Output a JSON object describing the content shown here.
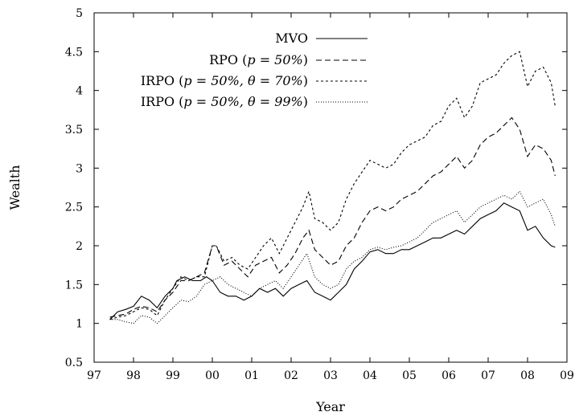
{
  "chart_data": {
    "type": "line",
    "xlabel": "Year",
    "ylabel": "Wealth",
    "xlim": [
      1997,
      2009
    ],
    "ylim": [
      0.5,
      5
    ],
    "xticks": [
      {
        "value": 1997,
        "label": "97"
      },
      {
        "value": 1998,
        "label": "98"
      },
      {
        "value": 1999,
        "label": "99"
      },
      {
        "value": 2000,
        "label": "00"
      },
      {
        "value": 2001,
        "label": "01"
      },
      {
        "value": 2002,
        "label": "02"
      },
      {
        "value": 2003,
        "label": "03"
      },
      {
        "value": 2004,
        "label": "04"
      },
      {
        "value": 2005,
        "label": "05"
      },
      {
        "value": 2006,
        "label": "06"
      },
      {
        "value": 2007,
        "label": "07"
      },
      {
        "value": 2008,
        "label": "08"
      },
      {
        "value": 2009,
        "label": "09"
      }
    ],
    "yticks": [
      {
        "value": 0.5,
        "label": "0.5"
      },
      {
        "value": 1,
        "label": "1"
      },
      {
        "value": 1.5,
        "label": "1.5"
      },
      {
        "value": 2,
        "label": "2"
      },
      {
        "value": 2.5,
        "label": "2.5"
      },
      {
        "value": 3,
        "label": "3"
      },
      {
        "value": 3.5,
        "label": "3.5"
      },
      {
        "value": 4,
        "label": "4"
      },
      {
        "value": 4.5,
        "label": "4.5"
      },
      {
        "value": 5,
        "label": "5"
      }
    ],
    "grid": false,
    "legend_position": "top-left",
    "series": [
      {
        "name": "MVO",
        "legend": {
          "label": "MVO",
          "math": "",
          "suffix": ""
        },
        "dash": "solid",
        "color": "#000000",
        "x": [
          1997.4,
          1997.6,
          1997.8,
          1998.0,
          1998.2,
          1998.4,
          1998.6,
          1998.8,
          1999.0,
          1999.1,
          1999.3,
          1999.5,
          1999.7,
          1999.85,
          2000.0,
          2000.2,
          2000.4,
          2000.6,
          2000.8,
          2001.0,
          2001.2,
          2001.4,
          2001.6,
          2001.8,
          2002.0,
          2002.2,
          2002.4,
          2002.6,
          2002.8,
          2003.0,
          2003.2,
          2003.4,
          2003.6,
          2003.8,
          2004.0,
          2004.2,
          2004.4,
          2004.6,
          2004.8,
          2005.0,
          2005.2,
          2005.4,
          2005.6,
          2005.8,
          2006.0,
          2006.2,
          2006.4,
          2006.6,
          2006.8,
          2007.0,
          2007.2,
          2007.4,
          2007.6,
          2007.8,
          2008.0,
          2008.2,
          2008.4,
          2008.6,
          2008.7
        ],
        "y": [
          1.05,
          1.15,
          1.18,
          1.22,
          1.35,
          1.3,
          1.2,
          1.35,
          1.45,
          1.55,
          1.6,
          1.55,
          1.55,
          1.6,
          1.55,
          1.4,
          1.35,
          1.35,
          1.3,
          1.35,
          1.45,
          1.4,
          1.45,
          1.35,
          1.45,
          1.5,
          1.55,
          1.4,
          1.35,
          1.3,
          1.4,
          1.5,
          1.7,
          1.8,
          1.92,
          1.95,
          1.9,
          1.9,
          1.95,
          1.95,
          2.0,
          2.05,
          2.1,
          2.1,
          2.15,
          2.2,
          2.15,
          2.25,
          2.35,
          2.4,
          2.45,
          2.55,
          2.5,
          2.45,
          2.2,
          2.25,
          2.1,
          2.0,
          1.98
        ]
      },
      {
        "name": "RPO (p = 50%)",
        "legend": {
          "label": "RPO (",
          "math": "p = 50%",
          "suffix": ")"
        },
        "dash": "7,4",
        "color": "#000000",
        "x": [
          1997.4,
          1997.6,
          1997.8,
          1998.0,
          1998.2,
          1998.4,
          1998.6,
          1998.8,
          1999.0,
          1999.2,
          1999.4,
          1999.6,
          1999.8,
          2000.0,
          2000.1,
          2000.3,
          2000.5,
          2000.7,
          2000.9,
          2001.1,
          2001.3,
          2001.5,
          2001.7,
          2001.9,
          2002.1,
          2002.3,
          2002.45,
          2002.6,
          2002.8,
          2003.0,
          2003.2,
          2003.4,
          2003.6,
          2003.8,
          2004.0,
          2004.2,
          2004.4,
          2004.6,
          2004.8,
          2005.0,
          2005.2,
          2005.4,
          2005.6,
          2005.8,
          2006.0,
          2006.2,
          2006.4,
          2006.6,
          2006.8,
          2007.0,
          2007.2,
          2007.4,
          2007.6,
          2007.8,
          2008.0,
          2008.2,
          2008.4,
          2008.6,
          2008.7
        ],
        "y": [
          1.08,
          1.1,
          1.12,
          1.18,
          1.22,
          1.2,
          1.15,
          1.3,
          1.4,
          1.55,
          1.55,
          1.6,
          1.65,
          2.0,
          2.0,
          1.75,
          1.8,
          1.7,
          1.6,
          1.75,
          1.8,
          1.85,
          1.65,
          1.75,
          1.9,
          2.1,
          2.2,
          1.95,
          1.85,
          1.75,
          1.8,
          2.0,
          2.1,
          2.3,
          2.45,
          2.5,
          2.45,
          2.5,
          2.6,
          2.65,
          2.7,
          2.8,
          2.9,
          2.95,
          3.05,
          3.15,
          3.0,
          3.1,
          3.3,
          3.4,
          3.45,
          3.55,
          3.65,
          3.5,
          3.15,
          3.3,
          3.25,
          3.1,
          2.9
        ]
      },
      {
        "name": "IRPO (p = 50%, θ = 70%)",
        "legend": {
          "label": "IRPO (",
          "math": "p = 50%, θ = 70%",
          "suffix": ")"
        },
        "dash": "3,3",
        "color": "#000000",
        "x": [
          1997.4,
          1997.6,
          1997.8,
          1998.0,
          1998.2,
          1998.4,
          1998.6,
          1998.8,
          1999.0,
          1999.2,
          1999.4,
          1999.6,
          1999.8,
          2000.0,
          2000.1,
          2000.3,
          2000.5,
          2000.7,
          2000.9,
          2001.1,
          2001.3,
          2001.5,
          2001.7,
          2001.9,
          2002.1,
          2002.3,
          2002.45,
          2002.6,
          2002.8,
          2003.0,
          2003.2,
          2003.4,
          2003.6,
          2003.8,
          2004.0,
          2004.2,
          2004.4,
          2004.6,
          2004.8,
          2005.0,
          2005.2,
          2005.4,
          2005.6,
          2005.8,
          2006.0,
          2006.2,
          2006.4,
          2006.6,
          2006.8,
          2007.0,
          2007.2,
          2007.4,
          2007.6,
          2007.8,
          2008.0,
          2008.2,
          2008.4,
          2008.6,
          2008.7
        ],
        "y": [
          1.05,
          1.08,
          1.1,
          1.15,
          1.2,
          1.18,
          1.1,
          1.3,
          1.45,
          1.6,
          1.55,
          1.6,
          1.6,
          2.0,
          2.0,
          1.8,
          1.85,
          1.75,
          1.7,
          1.85,
          2.0,
          2.1,
          1.9,
          2.1,
          2.3,
          2.5,
          2.7,
          2.35,
          2.3,
          2.2,
          2.3,
          2.6,
          2.8,
          2.95,
          3.1,
          3.05,
          3.0,
          3.05,
          3.2,
          3.3,
          3.35,
          3.4,
          3.55,
          3.6,
          3.8,
          3.9,
          3.65,
          3.8,
          4.1,
          4.15,
          4.2,
          4.35,
          4.45,
          4.5,
          4.05,
          4.25,
          4.3,
          4.1,
          3.8
        ]
      },
      {
        "name": "IRPO (p = 50%, θ = 99%)",
        "legend": {
          "label": "IRPO (",
          "math": "p = 50%, θ = 99%",
          "suffix": ")"
        },
        "dash": "1,2",
        "color": "#000000",
        "x": [
          1997.4,
          1997.6,
          1997.8,
          1998.0,
          1998.2,
          1998.4,
          1998.6,
          1998.8,
          1999.0,
          1999.2,
          1999.4,
          1999.6,
          1999.8,
          2000.0,
          2000.2,
          2000.4,
          2000.6,
          2000.8,
          2001.0,
          2001.2,
          2001.4,
          2001.6,
          2001.8,
          2002.0,
          2002.2,
          2002.4,
          2002.6,
          2002.8,
          2003.0,
          2003.2,
          2003.4,
          2003.6,
          2003.8,
          2004.0,
          2004.2,
          2004.4,
          2004.6,
          2004.8,
          2005.0,
          2005.2,
          2005.4,
          2005.6,
          2005.8,
          2006.0,
          2006.2,
          2006.4,
          2006.6,
          2006.8,
          2007.0,
          2007.2,
          2007.4,
          2007.6,
          2007.8,
          2008.0,
          2008.2,
          2008.4,
          2008.6,
          2008.7
        ],
        "y": [
          1.05,
          1.05,
          1.02,
          1.0,
          1.1,
          1.08,
          1.0,
          1.1,
          1.2,
          1.3,
          1.28,
          1.35,
          1.5,
          1.55,
          1.6,
          1.5,
          1.45,
          1.4,
          1.35,
          1.45,
          1.5,
          1.55,
          1.45,
          1.6,
          1.75,
          1.9,
          1.6,
          1.5,
          1.45,
          1.5,
          1.7,
          1.8,
          1.85,
          1.95,
          1.98,
          1.95,
          1.98,
          2.0,
          2.05,
          2.1,
          2.2,
          2.3,
          2.35,
          2.4,
          2.45,
          2.3,
          2.4,
          2.5,
          2.55,
          2.6,
          2.65,
          2.6,
          2.7,
          2.5,
          2.55,
          2.6,
          2.4,
          2.25
        ]
      }
    ]
  }
}
